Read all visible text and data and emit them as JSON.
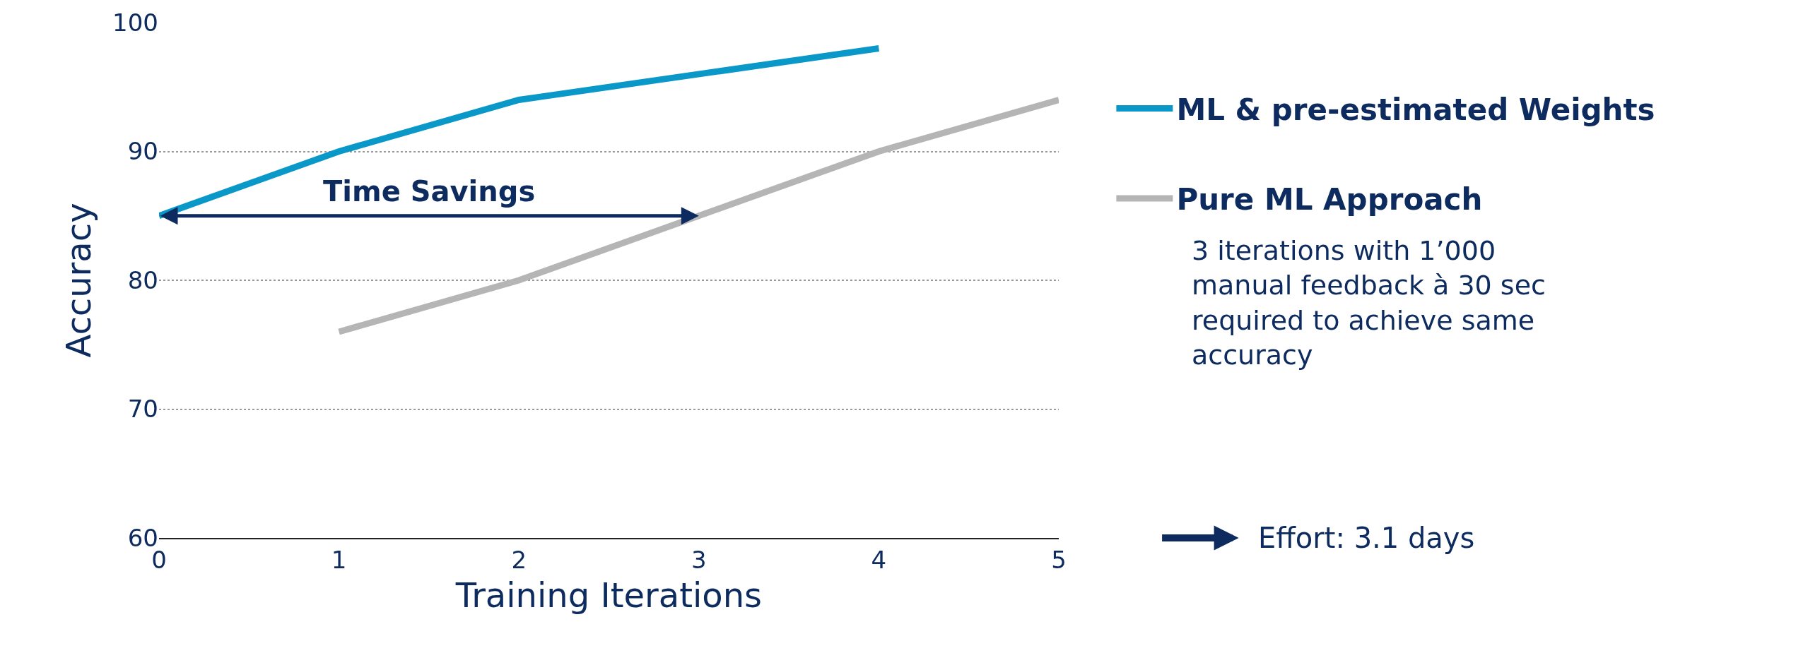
{
  "chart_data": {
    "type": "line",
    "xlabel": "Training Iterations",
    "ylabel": "Accuracy",
    "series": [
      {
        "name": "ML & pre-estimated Weights",
        "color": "#0a98c9",
        "x": [
          0,
          1,
          2,
          4
        ],
        "values": [
          85,
          90,
          94,
          98
        ]
      },
      {
        "name": "Pure ML Approach",
        "color": "#b5b5b5",
        "x": [
          1,
          2,
          4,
          5
        ],
        "values": [
          76,
          80,
          90,
          94
        ]
      }
    ],
    "xlim": [
      0,
      5
    ],
    "xticks": [
      0,
      1,
      2,
      3,
      4,
      5
    ],
    "ylim": [
      60,
      100
    ],
    "yticks": [
      60,
      70,
      80,
      90,
      100
    ],
    "grid": "y",
    "legend": "right",
    "marker": "none",
    "line_style": "solid",
    "annotations": [
      "Time Savings",
      "3 iterations with 1’000\nmanual feedback à 30 sec\nrequired to achieve same\naccuracy",
      "Effort: 3.1 days"
    ]
  }
}
